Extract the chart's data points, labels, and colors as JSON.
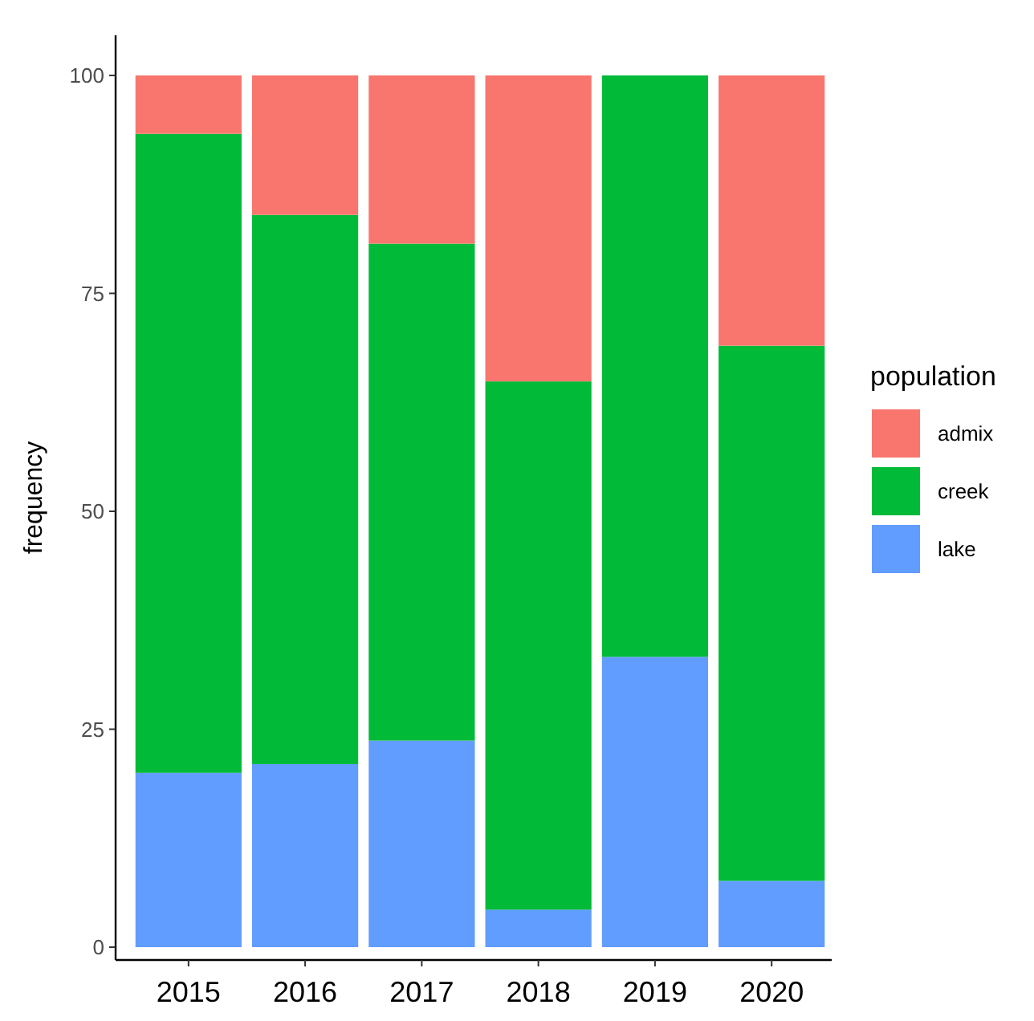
{
  "chart_data": {
    "type": "bar",
    "stacked": true,
    "ylabel": "frequency",
    "legend_title": "population",
    "legend": "right",
    "categories": [
      "2015",
      "2016",
      "2017",
      "2018",
      "2019",
      "2020"
    ],
    "series": [
      {
        "name": "lake",
        "color": "#619cff",
        "values": [
          20,
          21,
          23.7,
          4.3,
          33.3,
          7.6
        ]
      },
      {
        "name": "creek",
        "color": "#00ba38",
        "values": [
          73.3,
          63,
          57,
          60.6,
          66.7,
          61.4
        ]
      },
      {
        "name": "admix",
        "color": "#f8766d",
        "values": [
          6.7,
          16,
          19.3,
          35.1,
          0,
          31
        ]
      }
    ],
    "ylim": [
      0,
      104.6
    ],
    "yticks": [
      0,
      25,
      50,
      75,
      100
    ],
    "grid": false
  }
}
